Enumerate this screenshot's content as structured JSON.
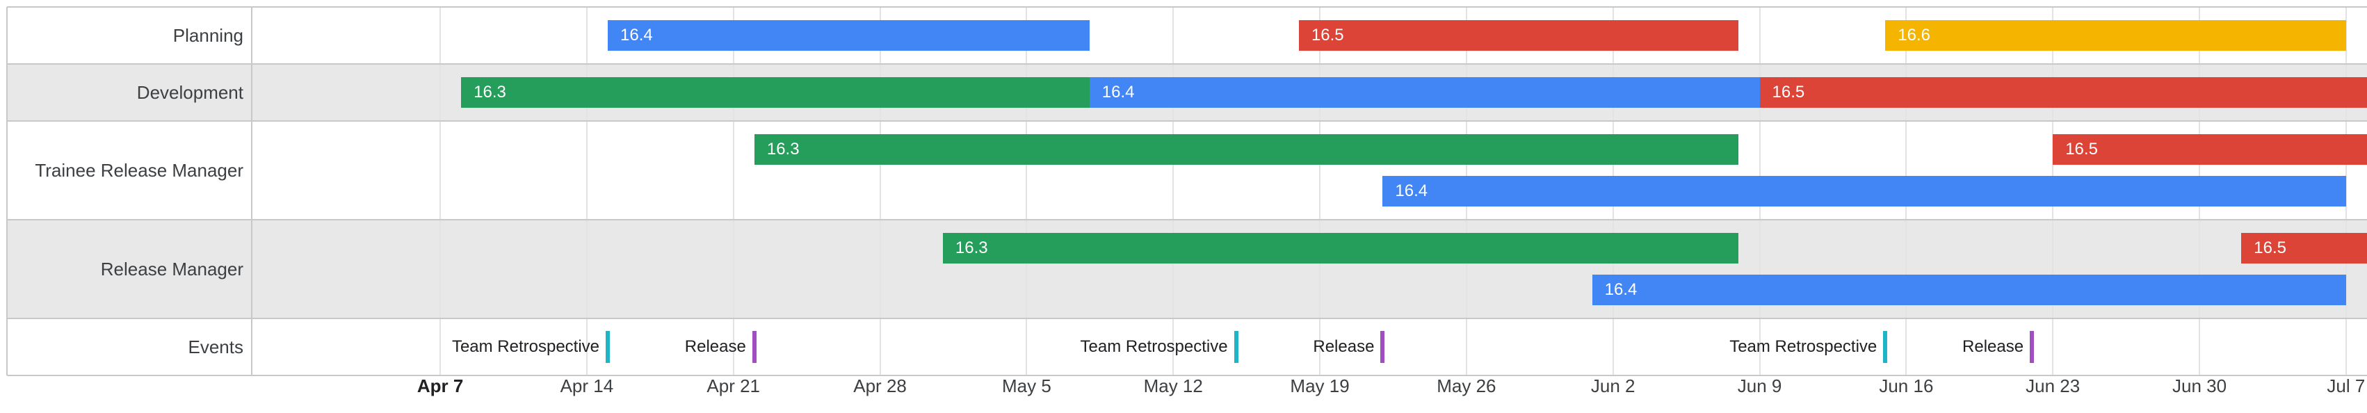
{
  "chart_data": {
    "type": "timeline",
    "x_range": [
      "2024-03-29",
      "2024-07-08"
    ],
    "rows": [
      {
        "label": "Planning",
        "lanes": [
          [
            {
              "label": "16.4",
              "start": "2024-04-15",
              "end": "2024-05-08",
              "color": "#4285f4"
            },
            {
              "label": "16.5",
              "start": "2024-05-18",
              "end": "2024-06-08",
              "color": "#db4437"
            },
            {
              "label": "16.6",
              "start": "2024-06-15",
              "end": "2024-07-07",
              "color": "#f4b400"
            }
          ]
        ]
      },
      {
        "label": "Development",
        "lanes": [
          [
            {
              "label": "16.3",
              "start": "2024-04-08",
              "end": "2024-05-08",
              "color": "#249e5a"
            },
            {
              "label": "16.4",
              "start": "2024-05-08",
              "end": "2024-06-09",
              "color": "#4285f4"
            },
            {
              "label": "16.5",
              "start": "2024-06-09",
              "end": "2024-07-08",
              "color": "#db4437"
            }
          ]
        ]
      },
      {
        "label": "Trainee Release Manager",
        "lanes": [
          [
            {
              "label": "16.3",
              "start": "2024-04-22",
              "end": "2024-06-08",
              "color": "#249e5a"
            },
            {
              "label": "16.5",
              "start": "2024-06-23",
              "end": "2024-07-08",
              "color": "#db4437"
            }
          ],
          [
            {
              "label": "16.4",
              "start": "2024-05-22",
              "end": "2024-07-07",
              "color": "#4285f4"
            }
          ]
        ]
      },
      {
        "label": "Release Manager",
        "lanes": [
          [
            {
              "label": "16.3",
              "start": "2024-05-01",
              "end": "2024-06-08",
              "color": "#249e5a"
            },
            {
              "label": "16.5",
              "start": "2024-07-02",
              "end": "2024-07-08",
              "color": "#db4437"
            }
          ],
          [
            {
              "label": "16.4",
              "start": "2024-06-01",
              "end": "2024-07-07",
              "color": "#4285f4"
            }
          ]
        ]
      }
    ],
    "events": {
      "label": "Events",
      "items": [
        {
          "label": "Team Retrospective",
          "date": "2024-04-15",
          "color": "#1fb5c6"
        },
        {
          "label": "Release",
          "date": "2024-04-22",
          "color": "#a04ec0"
        },
        {
          "label": "Team Retrospective",
          "date": "2024-05-15",
          "color": "#1fb5c6"
        },
        {
          "label": "Release",
          "date": "2024-05-22",
          "color": "#a04ec0"
        },
        {
          "label": "Team Retrospective",
          "date": "2024-06-15",
          "color": "#1fb5c6"
        },
        {
          "label": "Release",
          "date": "2024-06-22",
          "color": "#a04ec0"
        }
      ]
    },
    "x_ticks": [
      {
        "label": "Apr 7",
        "date": "2024-04-07",
        "bold": true
      },
      {
        "label": "Apr 14",
        "date": "2024-04-14"
      },
      {
        "label": "Apr 21",
        "date": "2024-04-21"
      },
      {
        "label": "Apr 28",
        "date": "2024-04-28"
      },
      {
        "label": "May 5",
        "date": "2024-05-05"
      },
      {
        "label": "May 12",
        "date": "2024-05-12"
      },
      {
        "label": "May 19",
        "date": "2024-05-19"
      },
      {
        "label": "May 26",
        "date": "2024-05-26"
      },
      {
        "label": "Jun 2",
        "date": "2024-06-02"
      },
      {
        "label": "Jun 9",
        "date": "2024-06-09"
      },
      {
        "label": "Jun 16",
        "date": "2024-06-16"
      },
      {
        "label": "Jun 23",
        "date": "2024-06-23"
      },
      {
        "label": "Jun 30",
        "date": "2024-06-30"
      },
      {
        "label": "Jul 7",
        "date": "2024-07-07"
      }
    ],
    "colors": {
      "row_alt_background": "#e8e8e8",
      "grid": "#e3e3e3",
      "border": "#c8c8c8"
    }
  }
}
